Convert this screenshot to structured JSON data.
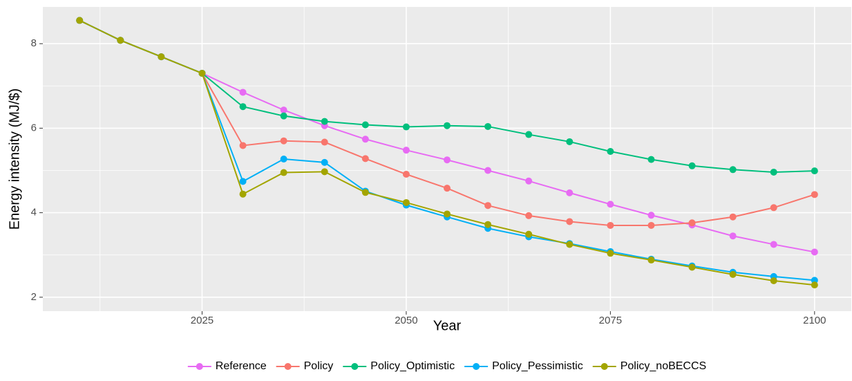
{
  "chart_data": {
    "type": "line",
    "x_label": "Year",
    "y_label": "Energy intensity (MJ/$)",
    "x": [
      2010,
      2015,
      2020,
      2025,
      2030,
      2035,
      2040,
      2045,
      2050,
      2055,
      2060,
      2065,
      2070,
      2075,
      2080,
      2085,
      2090,
      2095,
      2100
    ],
    "series": [
      {
        "name": "Reference",
        "color": "#E76BF3",
        "values": [
          8.55,
          8.08,
          7.69,
          7.3,
          6.85,
          6.43,
          6.06,
          5.74,
          5.48,
          5.25,
          5.0,
          4.75,
          4.47,
          4.2,
          3.94,
          3.71,
          3.45,
          3.25,
          3.07
        ]
      },
      {
        "name": "Policy",
        "color": "#F8766D",
        "values": [
          8.55,
          8.08,
          7.69,
          7.3,
          5.59,
          5.7,
          5.67,
          5.28,
          4.91,
          4.58,
          4.17,
          3.93,
          3.79,
          3.7,
          3.7,
          3.76,
          3.9,
          4.12,
          4.43
        ]
      },
      {
        "name": "Policy_Optimistic",
        "color": "#00BF7D",
        "values": [
          8.55,
          8.08,
          7.69,
          7.3,
          6.51,
          6.29,
          6.16,
          6.08,
          6.03,
          6.06,
          6.04,
          5.85,
          5.68,
          5.45,
          5.26,
          5.11,
          5.02,
          4.96,
          4.99
        ]
      },
      {
        "name": "Policy_Pessimistic",
        "color": "#00B0F6",
        "values": [
          8.55,
          8.08,
          7.69,
          7.3,
          4.74,
          5.27,
          5.19,
          4.51,
          4.18,
          3.9,
          3.63,
          3.43,
          3.27,
          3.08,
          2.9,
          2.74,
          2.59,
          2.49,
          2.4
        ]
      },
      {
        "name": "Policy_noBECCS",
        "color": "#A3A500",
        "values": [
          8.55,
          8.08,
          7.69,
          7.3,
          4.44,
          4.95,
          4.97,
          4.48,
          4.24,
          3.97,
          3.72,
          3.49,
          3.25,
          3.04,
          2.88,
          2.71,
          2.54,
          2.39,
          2.29
        ]
      }
    ],
    "xlim": [
      2005.5,
      2104.5
    ],
    "xticks": [
      2025,
      2050,
      2075,
      2100
    ],
    "x_minor_grid": [
      2012.5,
      2037.5,
      2062.5,
      2087.5
    ],
    "ylim": [
      1.67,
      8.87
    ],
    "yticks": [
      2,
      4,
      6,
      8
    ],
    "y_minor_grid": [
      3,
      5,
      7
    ],
    "grid": true,
    "legend": "bottom"
  }
}
